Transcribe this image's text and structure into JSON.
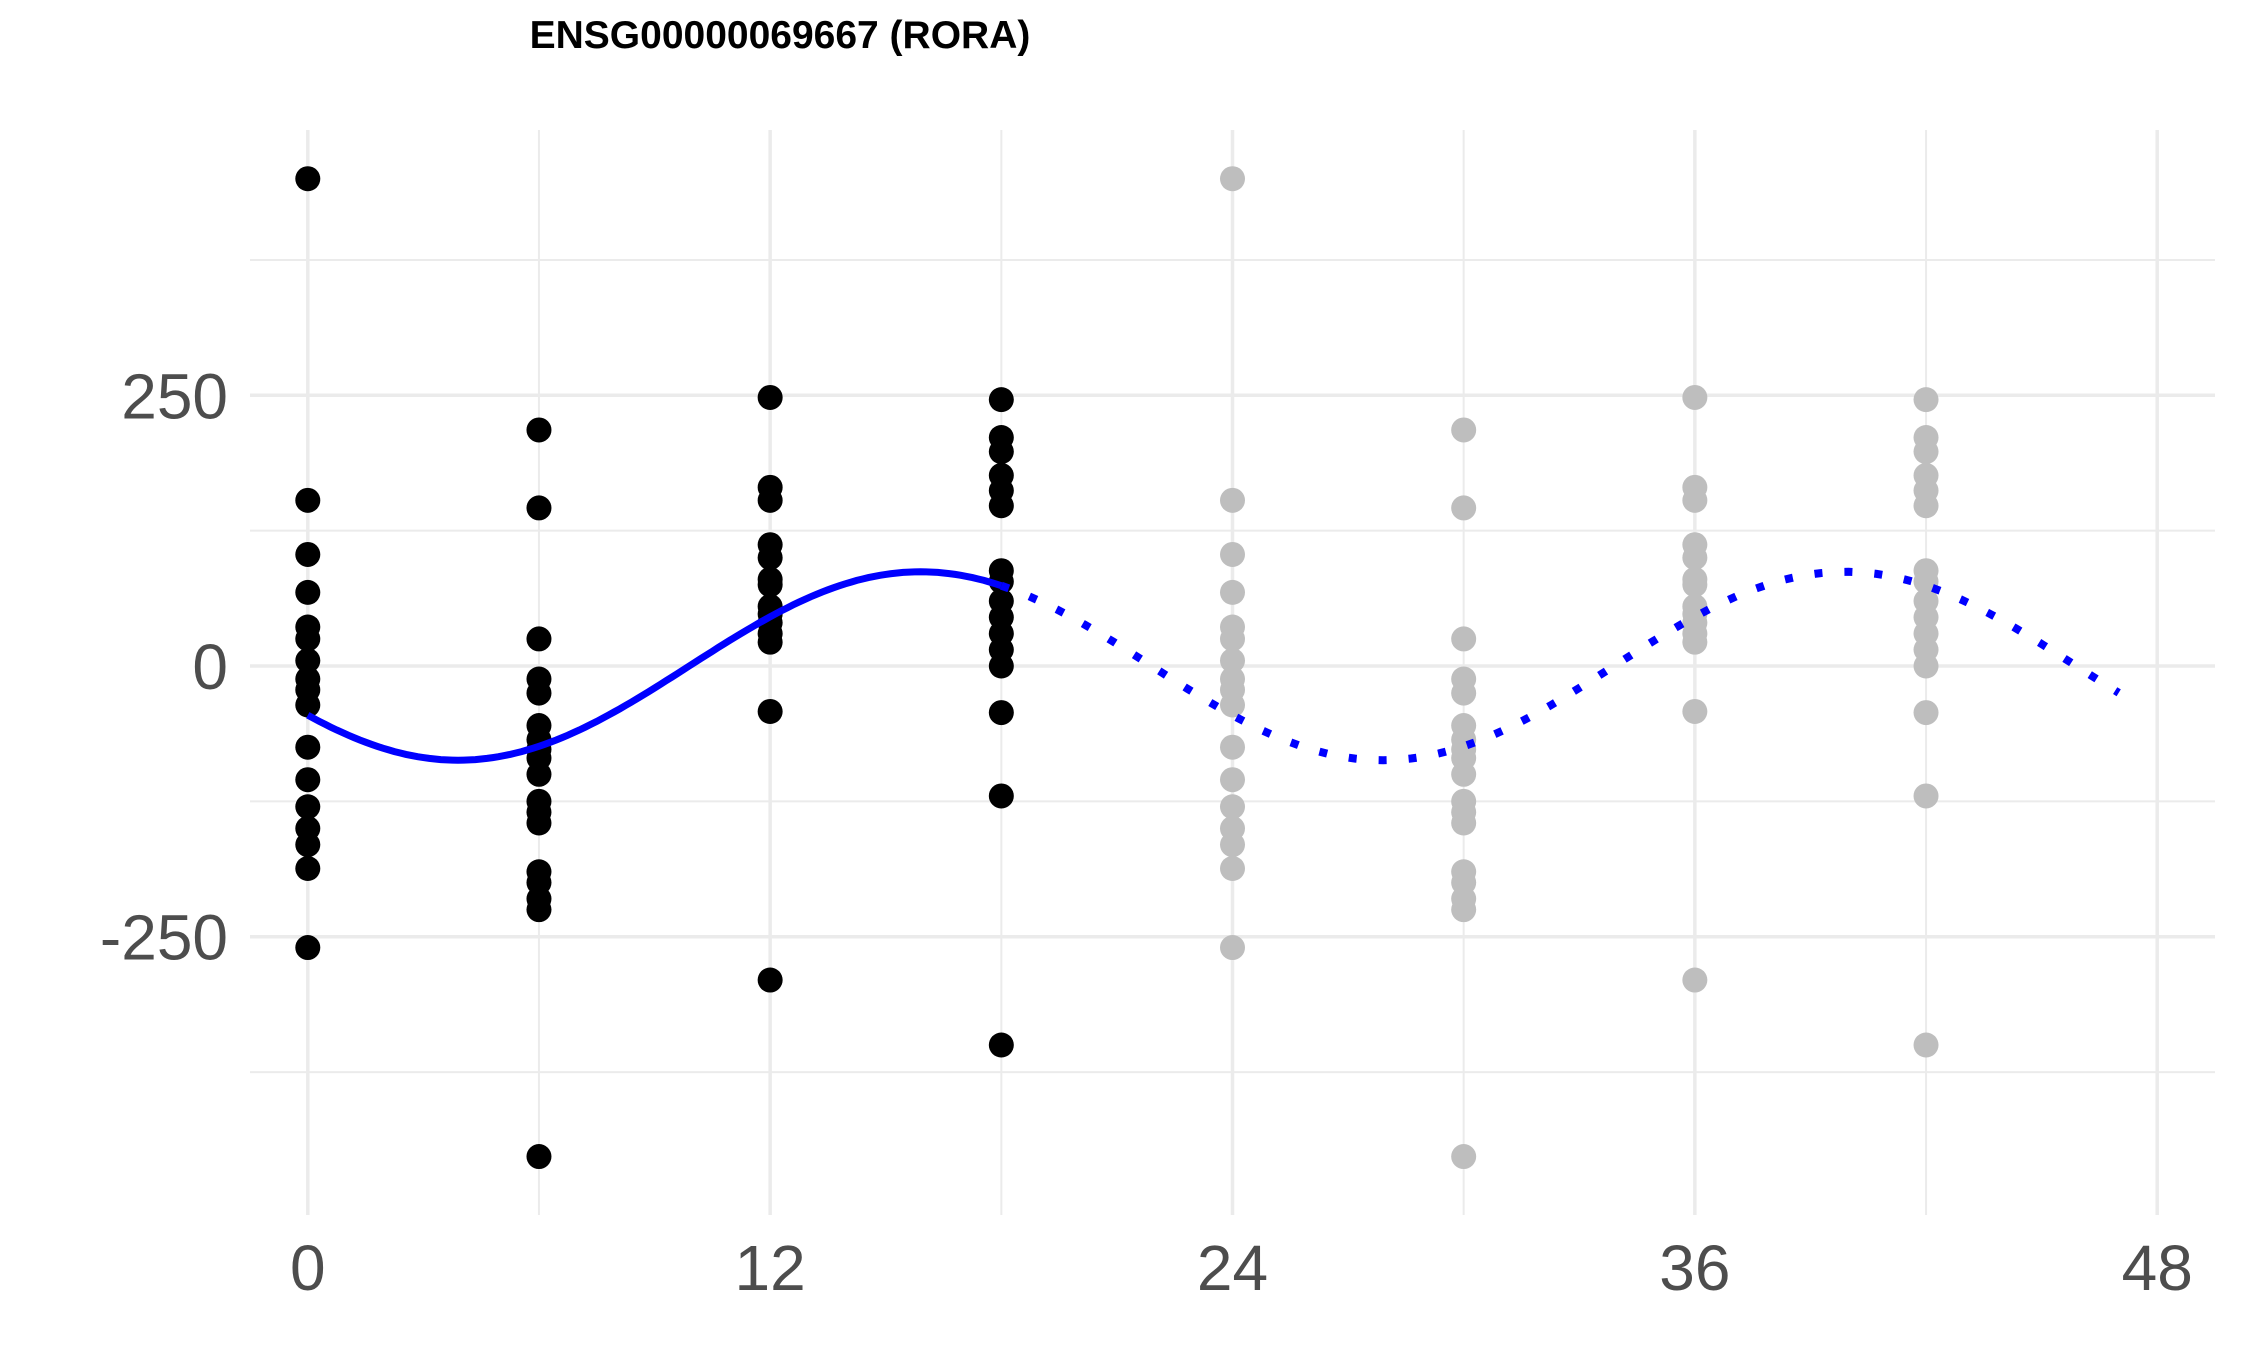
{
  "chart_data": {
    "type": "scatter",
    "title": "ENSG00000069667 (RORA)",
    "xlabel": "",
    "ylabel": "",
    "xlim": [
      -1.5,
      49.5
    ],
    "ylim": [
      -507,
      495
    ],
    "x_ticks": [
      0,
      12,
      24,
      36,
      48
    ],
    "y_ticks": [
      -250,
      0,
      250
    ],
    "grid": true,
    "colors": {
      "observed_points": "#000000",
      "repeated_points": "#bebebe",
      "fit_line": "#0000ff",
      "grid": "#ebebeb",
      "tick_text": "#4d4d4d"
    },
    "series": [
      {
        "role": "observed",
        "points": [
          [
            0,
            450
          ],
          [
            0,
            153
          ],
          [
            0,
            103
          ],
          [
            0,
            68
          ],
          [
            0,
            36
          ],
          [
            0,
            25
          ],
          [
            0,
            5
          ],
          [
            0,
            -12
          ],
          [
            0,
            -22
          ],
          [
            0,
            -36
          ],
          [
            0,
            -75
          ],
          [
            0,
            -105
          ],
          [
            0,
            -130
          ],
          [
            0,
            -150
          ],
          [
            0,
            -165
          ],
          [
            0,
            -187
          ],
          [
            0,
            -260
          ],
          [
            6,
            218
          ],
          [
            6,
            146
          ],
          [
            6,
            25
          ],
          [
            6,
            -12
          ],
          [
            6,
            -25
          ],
          [
            6,
            -55
          ],
          [
            6,
            -68
          ],
          [
            6,
            -77
          ],
          [
            6,
            -85
          ],
          [
            6,
            -100
          ],
          [
            6,
            -125
          ],
          [
            6,
            -135
          ],
          [
            6,
            -145
          ],
          [
            6,
            -190
          ],
          [
            6,
            -200
          ],
          [
            6,
            -215
          ],
          [
            6,
            -225
          ],
          [
            6,
            -453
          ],
          [
            12,
            248
          ],
          [
            12,
            165
          ],
          [
            12,
            153
          ],
          [
            12,
            112
          ],
          [
            12,
            100
          ],
          [
            12,
            80
          ],
          [
            12,
            75
          ],
          [
            12,
            55
          ],
          [
            12,
            48
          ],
          [
            12,
            40
          ],
          [
            12,
            30
          ],
          [
            12,
            22
          ],
          [
            12,
            -42
          ],
          [
            12,
            -290
          ],
          [
            18,
            246
          ],
          [
            18,
            211
          ],
          [
            18,
            198
          ],
          [
            18,
            176
          ],
          [
            18,
            162
          ],
          [
            18,
            148
          ],
          [
            18,
            88
          ],
          [
            18,
            78
          ],
          [
            18,
            60
          ],
          [
            18,
            45
          ],
          [
            18,
            30
          ],
          [
            18,
            15
          ],
          [
            18,
            0
          ],
          [
            18,
            -43
          ],
          [
            18,
            -120
          ],
          [
            18,
            -350
          ]
        ]
      },
      {
        "role": "repeated",
        "points": [
          [
            24,
            450
          ],
          [
            24,
            153
          ],
          [
            24,
            103
          ],
          [
            24,
            68
          ],
          [
            24,
            36
          ],
          [
            24,
            25
          ],
          [
            24,
            5
          ],
          [
            24,
            -12
          ],
          [
            24,
            -22
          ],
          [
            24,
            -36
          ],
          [
            24,
            -75
          ],
          [
            24,
            -105
          ],
          [
            24,
            -130
          ],
          [
            24,
            -150
          ],
          [
            24,
            -165
          ],
          [
            24,
            -187
          ],
          [
            24,
            -260
          ],
          [
            30,
            218
          ],
          [
            30,
            146
          ],
          [
            30,
            25
          ],
          [
            30,
            -12
          ],
          [
            30,
            -25
          ],
          [
            30,
            -55
          ],
          [
            30,
            -68
          ],
          [
            30,
            -77
          ],
          [
            30,
            -85
          ],
          [
            30,
            -100
          ],
          [
            30,
            -125
          ],
          [
            30,
            -135
          ],
          [
            30,
            -145
          ],
          [
            30,
            -190
          ],
          [
            30,
            -200
          ],
          [
            30,
            -215
          ],
          [
            30,
            -225
          ],
          [
            30,
            -453
          ],
          [
            36,
            248
          ],
          [
            36,
            165
          ],
          [
            36,
            153
          ],
          [
            36,
            112
          ],
          [
            36,
            100
          ],
          [
            36,
            80
          ],
          [
            36,
            75
          ],
          [
            36,
            55
          ],
          [
            36,
            48
          ],
          [
            36,
            40
          ],
          [
            36,
            30
          ],
          [
            36,
            22
          ],
          [
            36,
            -42
          ],
          [
            36,
            -290
          ],
          [
            42,
            246
          ],
          [
            42,
            211
          ],
          [
            42,
            198
          ],
          [
            42,
            176
          ],
          [
            42,
            162
          ],
          [
            42,
            148
          ],
          [
            42,
            88
          ],
          [
            42,
            78
          ],
          [
            42,
            60
          ],
          [
            42,
            45
          ],
          [
            42,
            30
          ],
          [
            42,
            15
          ],
          [
            42,
            0
          ],
          [
            42,
            -43
          ],
          [
            42,
            -120
          ],
          [
            42,
            -350
          ]
        ]
      }
    ],
    "fit": {
      "mesor": 0,
      "amplitude": 87,
      "period": 24,
      "peak_time": 15.9,
      "solid_range": [
        0,
        18
      ],
      "dotted_range": [
        18,
        47
      ]
    }
  }
}
